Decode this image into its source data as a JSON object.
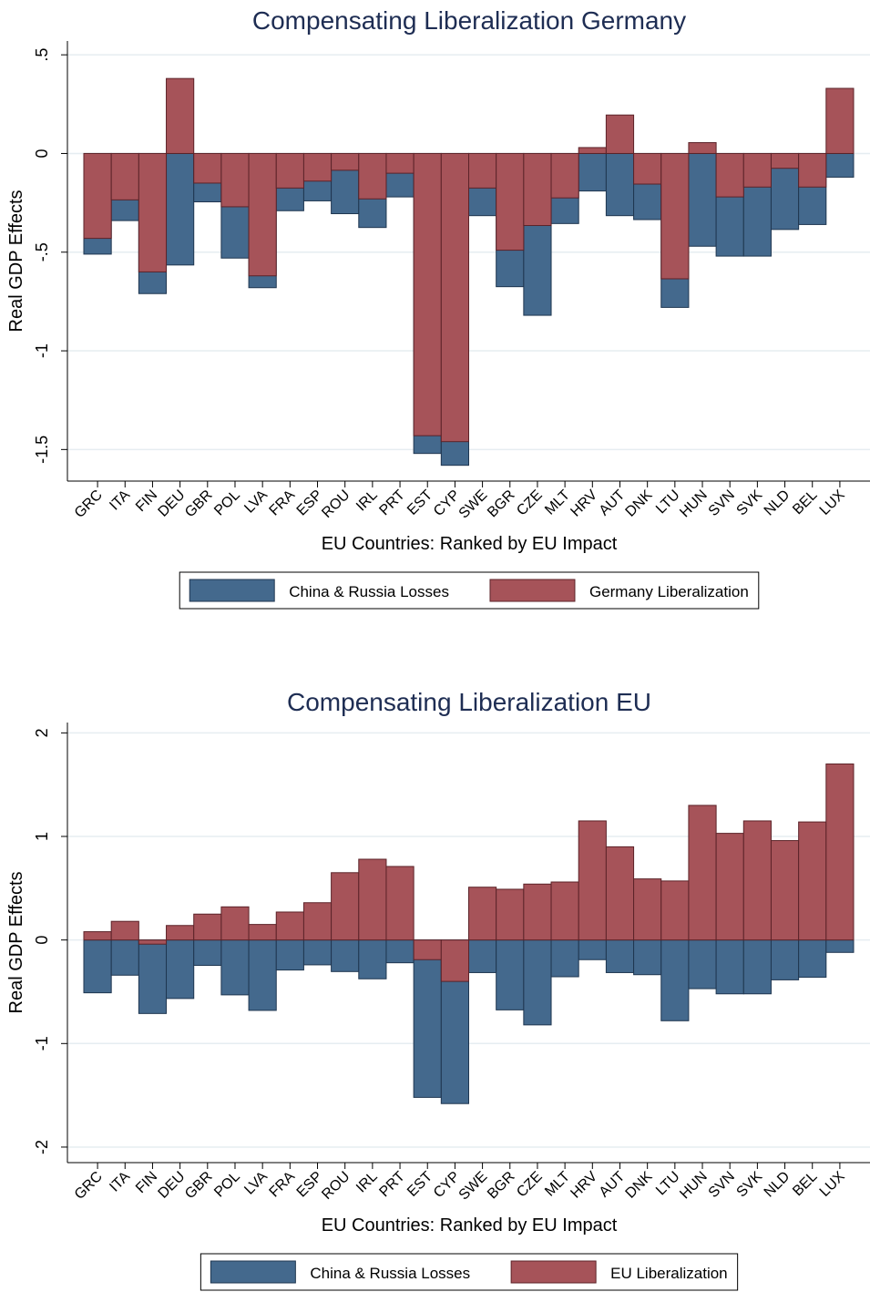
{
  "chart_data": [
    {
      "type": "bar",
      "title": "Compensating Liberalization Germany",
      "xlabel": "EU Countries: Ranked by EU Impact",
      "ylabel": "Real GDP Effects",
      "categories": [
        "GRC",
        "ITA",
        "FIN",
        "DEU",
        "GBR",
        "POL",
        "LVA",
        "FRA",
        "ESP",
        "ROU",
        "IRL",
        "PRT",
        "EST",
        "CYP",
        "SWE",
        "BGR",
        "CZE",
        "MLT",
        "HRV",
        "AUT",
        "DNK",
        "LTU",
        "HUN",
        "SVN",
        "SVK",
        "NLD",
        "BEL",
        "LUX"
      ],
      "series": [
        {
          "name": "China & Russia Losses",
          "color": "#44698d",
          "values": [
            -0.51,
            -0.34,
            -0.71,
            -0.565,
            -0.245,
            -0.53,
            -0.68,
            -0.29,
            -0.24,
            -0.305,
            -0.375,
            -0.22,
            -1.52,
            -1.58,
            -0.315,
            -0.675,
            -0.82,
            -0.355,
            -0.19,
            -0.315,
            -0.335,
            -0.78,
            -0.47,
            -0.52,
            -0.52,
            -0.385,
            -0.36,
            -0.12
          ]
        },
        {
          "name": "Germany Liberalization",
          "color": "#a65359",
          "values": [
            -0.43,
            -0.235,
            -0.6,
            0.38,
            -0.15,
            -0.27,
            -0.62,
            -0.175,
            -0.14,
            -0.085,
            -0.23,
            -0.1,
            -1.43,
            -1.46,
            -0.175,
            -0.49,
            -0.365,
            -0.225,
            0.03,
            0.195,
            -0.155,
            -0.635,
            0.055,
            -0.22,
            -0.17,
            -0.075,
            -0.17,
            0.33
          ]
        }
      ],
      "ylim": [
        -1.66,
        0.57
      ],
      "yticks": [
        {
          "value": -1.5,
          "label": "-1.5"
        },
        -1,
        {
          "value": -0.5,
          "label": "-.5"
        },
        0,
        {
          "value": 0.5,
          "label": ".5"
        }
      ],
      "grid": true,
      "legend": "bottom"
    },
    {
      "type": "bar",
      "title": "Compensating Liberalization EU",
      "xlabel": "EU Countries: Ranked by EU Impact",
      "ylabel": "Real GDP Effects",
      "categories": [
        "GRC",
        "ITA",
        "FIN",
        "DEU",
        "GBR",
        "POL",
        "LVA",
        "FRA",
        "ESP",
        "ROU",
        "IRL",
        "PRT",
        "EST",
        "CYP",
        "SWE",
        "BGR",
        "CZE",
        "MLT",
        "HRV",
        "AUT",
        "DNK",
        "LTU",
        "HUN",
        "SVN",
        "SVK",
        "NLD",
        "BEL",
        "LUX"
      ],
      "series": [
        {
          "name": "China & Russia Losses",
          "color": "#44698d",
          "values": [
            -0.51,
            -0.34,
            -0.71,
            -0.565,
            -0.245,
            -0.53,
            -0.68,
            -0.29,
            -0.24,
            -0.305,
            -0.375,
            -0.22,
            -1.52,
            -1.58,
            -0.315,
            -0.675,
            -0.82,
            -0.355,
            -0.19,
            -0.315,
            -0.335,
            -0.78,
            -0.47,
            -0.52,
            -0.52,
            -0.385,
            -0.36,
            -0.12
          ]
        },
        {
          "name": "EU Liberalization",
          "color": "#a65359",
          "values": [
            0.08,
            0.18,
            -0.04,
            0.14,
            0.25,
            0.32,
            0.15,
            0.27,
            0.36,
            0.65,
            0.78,
            0.71,
            -0.19,
            -0.4,
            0.51,
            0.49,
            0.54,
            0.56,
            1.15,
            0.9,
            0.59,
            0.57,
            1.3,
            1.03,
            1.15,
            0.96,
            1.14,
            1.7
          ]
        }
      ],
      "ylim": [
        -2.15,
        2.1
      ],
      "yticks": [
        -2,
        -1,
        0,
        1,
        2
      ],
      "grid": true,
      "legend": "bottom"
    }
  ]
}
